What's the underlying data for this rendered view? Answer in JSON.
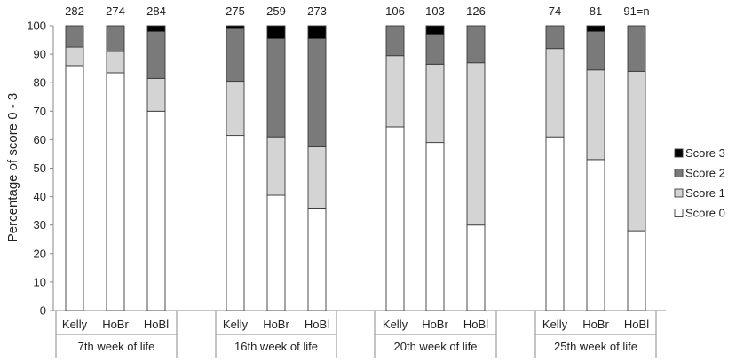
{
  "chart_data": {
    "type": "bar",
    "stacked": true,
    "ylabel": "Percentage of score 0 - 3",
    "ylim": [
      0,
      100
    ],
    "yticks": [
      0,
      10,
      20,
      30,
      40,
      50,
      60,
      70,
      80,
      90,
      100
    ],
    "grid": false,
    "legend_position": "right",
    "groups": [
      {
        "label": "7th week of life",
        "categories": [
          "Kelly",
          "HoBr",
          "HoBl"
        ],
        "n_labels": [
          "282",
          "274",
          "284"
        ]
      },
      {
        "label": "16th week of life",
        "categories": [
          "Kelly",
          "HoBr",
          "HoBl"
        ],
        "n_labels": [
          "275",
          "259",
          "273"
        ]
      },
      {
        "label": "20th week of life",
        "categories": [
          "Kelly",
          "HoBr",
          "HoBl"
        ],
        "n_labels": [
          "106",
          "103",
          "126"
        ]
      },
      {
        "label": "25th week of life",
        "categories": [
          "Kelly",
          "HoBr",
          "HoBl"
        ],
        "n_labels": [
          "74",
          "81",
          "91=n"
        ]
      }
    ],
    "series": [
      {
        "name": "Score 0",
        "color": "#ffffff",
        "values": [
          86,
          83.5,
          70,
          61.5,
          40.5,
          36,
          64.5,
          59,
          30,
          61,
          53,
          28
        ]
      },
      {
        "name": "Score 1",
        "color": "#d4d4d4",
        "values": [
          6.5,
          7.5,
          11.5,
          19,
          20.5,
          21.5,
          25,
          27.5,
          57,
          31,
          31.5,
          56
        ]
      },
      {
        "name": "Score 2",
        "color": "#7a7a7a",
        "values": [
          7.5,
          9,
          16.5,
          18.5,
          34.5,
          38,
          10.5,
          10.5,
          13,
          8,
          13.5,
          16
        ]
      },
      {
        "name": "Score 3",
        "color": "#000000",
        "values": [
          0,
          0,
          2,
          1,
          4.5,
          4.5,
          0,
          3,
          0,
          0,
          2,
          0
        ]
      }
    ]
  }
}
